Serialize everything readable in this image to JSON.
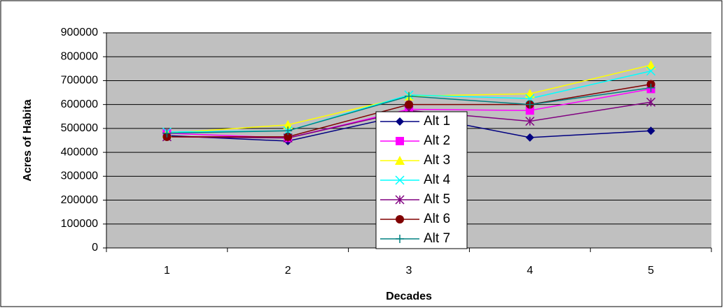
{
  "chart_data": {
    "type": "line",
    "x_label": "Decades",
    "y_label": "Acres of Habita",
    "categories": [
      "1",
      "2",
      "3",
      "4",
      "5"
    ],
    "ylim": [
      0,
      900000
    ],
    "yticks": [
      0,
      100000,
      200000,
      300000,
      400000,
      500000,
      600000,
      700000,
      800000,
      900000
    ],
    "grid": true,
    "legend": "center",
    "series": [
      {
        "name": "Alt 1",
        "color": "#000080",
        "marker": "diamond",
        "values": [
          470000,
          447000,
          560000,
          462000,
          490000
        ]
      },
      {
        "name": "Alt 2",
        "color": "#ff00ff",
        "marker": "square",
        "values": [
          480000,
          460000,
          580000,
          575000,
          665000
        ]
      },
      {
        "name": "Alt 3",
        "color": "#ffff00",
        "marker": "triangle",
        "values": [
          480000,
          515000,
          635000,
          645000,
          765000
        ]
      },
      {
        "name": "Alt 4",
        "color": "#00ffff",
        "marker": "x",
        "values": [
          485000,
          490000,
          640000,
          625000,
          740000
        ]
      },
      {
        "name": "Alt 5",
        "color": "#800080",
        "marker": "star",
        "values": [
          465000,
          460000,
          575000,
          530000,
          610000
        ]
      },
      {
        "name": "Alt 6",
        "color": "#800000",
        "marker": "circle",
        "values": [
          465000,
          465000,
          600000,
          600000,
          685000
        ]
      },
      {
        "name": "Alt 7",
        "color": "#008080",
        "marker": "plus",
        "values": [
          480000,
          490000,
          635000,
          600000,
          670000
        ]
      }
    ]
  }
}
